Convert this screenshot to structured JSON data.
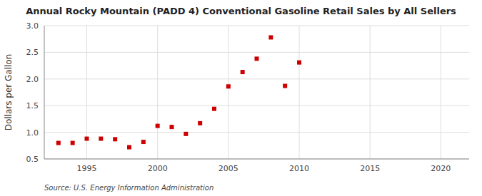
{
  "chart_data": {
    "type": "scatter",
    "title": "Annual Rocky Mountain (PADD 4) Conventional Gasoline Retail Sales by All Sellers",
    "y_label": "Dollars per Gallon",
    "annotations": [
      "Source: U.S. Energy Information Administration"
    ],
    "x": [
      1993,
      1994,
      1995,
      1996,
      1997,
      1998,
      1999,
      2000,
      2001,
      2002,
      2003,
      2004,
      2005,
      2006,
      2007,
      2008,
      2009,
      2010
    ],
    "values": [
      0.8,
      0.8,
      0.88,
      0.88,
      0.87,
      0.72,
      0.82,
      1.12,
      1.1,
      0.97,
      1.17,
      1.44,
      1.86,
      2.13,
      2.38,
      2.78,
      1.87,
      2.31
    ],
    "color": "#cc0000",
    "marker": "square",
    "xlim": [
      1992,
      2022
    ],
    "ylim": [
      0.5,
      3.0
    ],
    "xticks": [
      1995,
      2000,
      2005,
      2010,
      2015,
      2020
    ],
    "yticks": [
      0.5,
      {
        "value": 1,
        "label": "1.0"
      },
      1.5,
      {
        "value": 2,
        "label": "2.0"
      },
      2.5,
      {
        "value": 3,
        "label": "3.0"
      }
    ],
    "grid": true
  }
}
